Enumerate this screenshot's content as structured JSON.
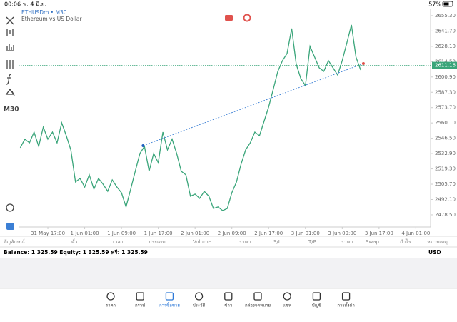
{
  "status_bar": {
    "time": "00:06",
    "date": "พ. 4 มิ.ย.",
    "battery": "57%"
  },
  "toolbar": {
    "timeframe": "M30"
  },
  "chart_data": {
    "type": "line",
    "title": "ETHUSDm • M30",
    "subtitle": "Ethereum vs US Dollar",
    "color": "#3aa57a",
    "x": [
      -6,
      -5,
      -4,
      -3,
      -2,
      -1,
      0,
      1,
      2,
      3,
      4,
      5,
      6,
      7,
      8,
      9,
      10,
      11,
      12,
      13,
      14,
      15,
      16,
      17,
      18,
      19,
      20,
      21,
      22,
      23,
      24,
      25,
      26,
      27,
      28,
      29,
      30,
      31,
      32,
      33,
      34,
      35,
      36,
      37,
      38,
      39,
      40,
      41,
      42,
      43,
      44,
      45,
      46,
      47,
      48,
      49,
      50,
      51,
      52,
      53,
      54,
      55,
      56,
      57,
      58,
      59,
      60,
      61,
      62,
      63,
      64,
      65,
      66,
      67,
      68
    ],
    "values": [
      2538.1,
      2545.7,
      2542.5,
      2552.0,
      2539.3,
      2556.4,
      2545.7,
      2552.0,
      2542.5,
      2560.2,
      2548.8,
      2536.2,
      2507.7,
      2510.8,
      2503.2,
      2514.0,
      2501.3,
      2510.8,
      2505.7,
      2499.4,
      2509.5,
      2503.2,
      2498.1,
      2485.5,
      2501.3,
      2517.2,
      2533.0,
      2539.3,
      2517.2,
      2533.0,
      2524.8,
      2552.0,
      2536.2,
      2545.7,
      2533.0,
      2517.2,
      2514.0,
      2495.0,
      2496.9,
      2493.1,
      2499.4,
      2495.0,
      2484.2,
      2485.5,
      2482.3,
      2484.2,
      2498.1,
      2507.7,
      2523.5,
      2536.2,
      2542.5,
      2552.0,
      2548.8,
      2561.5,
      2574.2,
      2590.0,
      2605.9,
      2615.4,
      2621.7,
      2643.9,
      2612.2,
      2599.5,
      2593.2,
      2628.1,
      2618.5,
      2609.0,
      2605.9,
      2615.4,
      2609.0,
      2602.7,
      2615.4,
      2631.2,
      2647.1,
      2618.5,
      2607.1
    ],
    "current_price": {
      "value": 2611.16,
      "label": "2611.16"
    },
    "trendline": {
      "x": [
        20.7,
        68.6
      ],
      "values": [
        2539.9,
        2612.8
      ]
    },
    "xlim": [
      -6.37,
      83.2
    ],
    "ylim": [
      2467.7,
      2661.6
    ],
    "xticks": [
      {
        "value": 0,
        "label": "31 May 17:00"
      },
      {
        "value": 8,
        "label": "1 Jun 01:00"
      },
      {
        "value": 16,
        "label": "1 Jun 09:00"
      },
      {
        "value": 24,
        "label": "1 Jun 17:00"
      },
      {
        "value": 32,
        "label": "2 Jun 01:00"
      },
      {
        "value": 40,
        "label": "2 Jun 09:00"
      },
      {
        "value": 48,
        "label": "2 Jun 17:00"
      },
      {
        "value": 56,
        "label": "3 Jun 01:00"
      },
      {
        "value": 64,
        "label": "3 Jun 09:00"
      },
      {
        "value": 72,
        "label": "3 Jun 17:00"
      },
      {
        "value": 80,
        "label": "4 Jun 01:00"
      }
    ],
    "yticks": [
      {
        "value": 2655.3,
        "label": "2655.30"
      },
      {
        "value": 2641.7,
        "label": "2641.70"
      },
      {
        "value": 2628.1,
        "label": "2628.10"
      },
      {
        "value": 2614.5,
        "label": "2614.50"
      },
      {
        "value": 2600.9,
        "label": "2600.90"
      },
      {
        "value": 2587.3,
        "label": "2587.30"
      },
      {
        "value": 2573.7,
        "label": "2573.70"
      },
      {
        "value": 2560.1,
        "label": "2560.10"
      },
      {
        "value": 2546.5,
        "label": "2546.50"
      },
      {
        "value": 2532.9,
        "label": "2532.90"
      },
      {
        "value": 2519.3,
        "label": "2519.30"
      },
      {
        "value": 2505.7,
        "label": "2505.70"
      },
      {
        "value": 2492.1,
        "label": "2492.10"
      },
      {
        "value": 2478.5,
        "label": "2478.50"
      }
    ]
  },
  "positions_table": {
    "columns": [
      "สัญลักษณ์",
      "ตั๋ว",
      "เวลา",
      "ประเภท",
      "Volume",
      "ราคา",
      "S/L",
      "T/P",
      "ราคา",
      "Swap",
      "กำไร",
      "หมายเหตุ"
    ]
  },
  "account": {
    "summary": "Balance: 1 325.59 Equity: 1 325.59 ฟรี: 1 325.59",
    "currency": "USD"
  },
  "tabs": {
    "active": 2,
    "labels": [
      "ราคา",
      "กราฟ",
      "การซื้อขาย",
      "ประวัติ",
      "ข่าว",
      "กล่องจดหมาย",
      "แชท",
      "บัญชี",
      "การตั้งค่า"
    ]
  }
}
